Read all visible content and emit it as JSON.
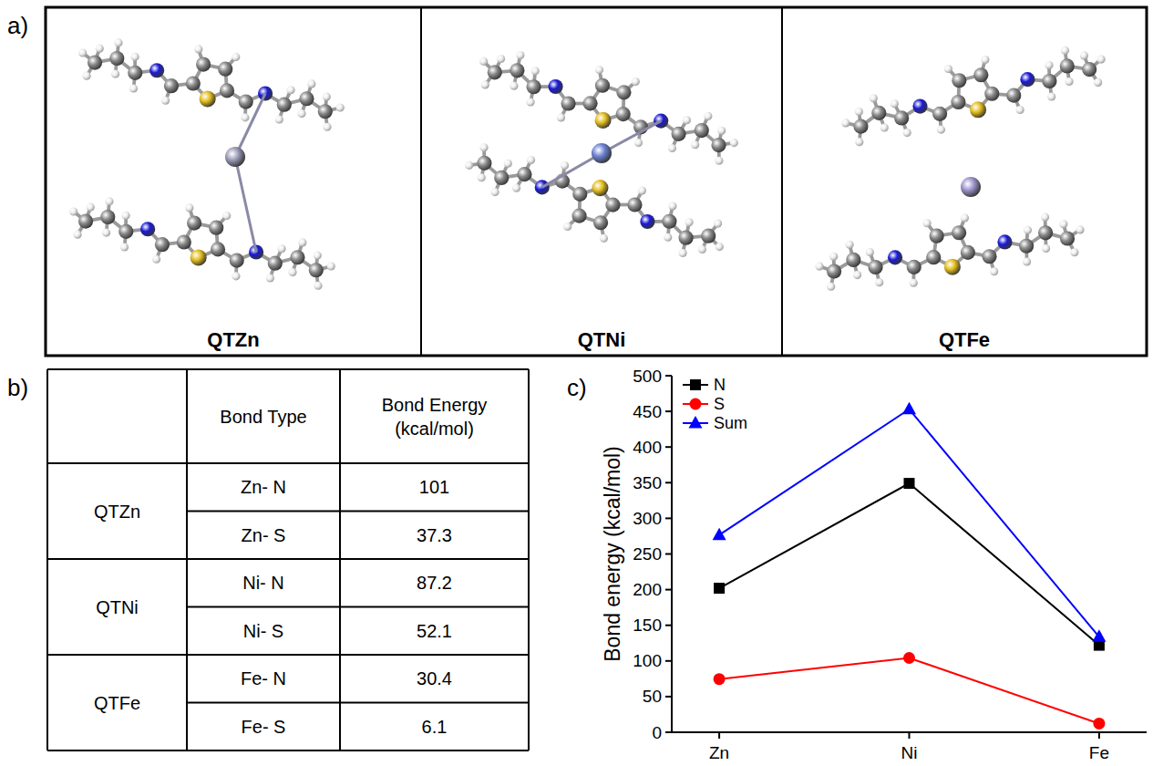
{
  "molecules": {
    "panel_label": "a)",
    "names": [
      "QTZn",
      "QTNi",
      "QTFe"
    ]
  },
  "table": {
    "panel_label": "b)",
    "header": [
      "Bond Type",
      "Bond Energy (kcal/mol)"
    ],
    "groups": [
      {
        "name": "QTZn",
        "rows": [
          [
            "Zn- N",
            101
          ],
          [
            "Zn- S",
            37.3
          ]
        ]
      },
      {
        "name": "QTNi",
        "rows": [
          [
            "Ni- N",
            87.2
          ],
          [
            "Ni- S",
            52.1
          ]
        ]
      },
      {
        "name": "QTFe",
        "rows": [
          [
            "Fe- N",
            30.4
          ],
          [
            "Fe- S",
            6.1
          ]
        ]
      }
    ]
  },
  "chart_data": {
    "type": "line",
    "panel_label": "c)",
    "y_label": "Bond energy (kcal/mol)",
    "categories": [
      "Zn",
      "Ni",
      "Fe"
    ],
    "series": [
      {
        "name": "N",
        "color": "#000000",
        "marker": "square",
        "values": [
          202,
          349,
          122
        ]
      },
      {
        "name": "S",
        "color": "#ff0000",
        "marker": "circle",
        "values": [
          74.6,
          104.2,
          12.2
        ]
      },
      {
        "name": "Sum",
        "color": "#0000ff",
        "marker": "triangle",
        "values": [
          276.6,
          453,
          133.8
        ]
      }
    ],
    "ylim": [
      0,
      500
    ],
    "yticks": [
      0,
      50,
      100,
      150,
      200,
      250,
      300,
      350,
      400,
      450,
      500
    ],
    "legend": "upper left",
    "grid": false
  }
}
